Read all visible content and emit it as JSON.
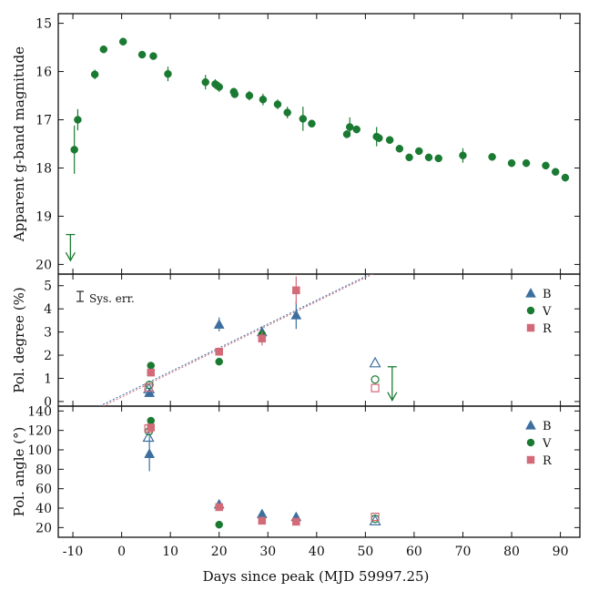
{
  "colors": {
    "g": "#1a7a32",
    "B": "#3d6f9e",
    "V": "#1a7a32",
    "R": "#d26a78",
    "frame": "#111111"
  },
  "x_axis": {
    "label": "Days since peak (MJD 59997.25)",
    "xlim": [
      -13,
      94
    ],
    "ticks": [
      -10,
      0,
      10,
      20,
      30,
      40,
      50,
      60,
      70,
      80,
      90
    ],
    "tick_labels": [
      "-10",
      "0",
      "10",
      "20",
      "30",
      "40",
      "50",
      "60",
      "70",
      "80",
      "90"
    ]
  },
  "chart_data": [
    {
      "type": "scatter",
      "ylabel": "Apparent g-band magnitude",
      "ylim": [
        20.2,
        14.8
      ],
      "inverted": true,
      "yticks": [
        15,
        16,
        17,
        18,
        19,
        20
      ],
      "ytick_labels": [
        "15",
        "16",
        "17",
        "18",
        "19",
        "20"
      ],
      "series": [
        {
          "key": "g",
          "marker": "circle",
          "points": [
            {
              "x": -9.7,
              "y": 17.62,
              "err": 0.5
            },
            {
              "x": -9.0,
              "y": 17.0,
              "err": 0.22
            },
            {
              "x": -5.5,
              "y": 16.06,
              "err": 0.1
            },
            {
              "x": -3.7,
              "y": 15.54,
              "err": 0.05
            },
            {
              "x": 0.3,
              "y": 15.38,
              "err": 0.04
            },
            {
              "x": 4.2,
              "y": 15.65,
              "err": 0.05
            },
            {
              "x": 6.5,
              "y": 15.68,
              "err": 0.05
            },
            {
              "x": 9.5,
              "y": 16.05,
              "err": 0.15
            },
            {
              "x": 17.2,
              "y": 16.22,
              "err": 0.15
            },
            {
              "x": 19.2,
              "y": 16.26,
              "err": 0.1
            },
            {
              "x": 20.0,
              "y": 16.32,
              "err": 0.1
            },
            {
              "x": 23.0,
              "y": 16.42,
              "err": 0.08
            },
            {
              "x": 23.2,
              "y": 16.47,
              "err": 0.06
            },
            {
              "x": 26.2,
              "y": 16.5,
              "err": 0.1
            },
            {
              "x": 29.0,
              "y": 16.58,
              "err": 0.12
            },
            {
              "x": 32.0,
              "y": 16.68,
              "err": 0.1
            },
            {
              "x": 34.0,
              "y": 16.85,
              "err": 0.12
            },
            {
              "x": 37.2,
              "y": 16.98,
              "err": 0.25
            },
            {
              "x": 39.0,
              "y": 17.08,
              "err": 0.08
            },
            {
              "x": 46.2,
              "y": 17.3,
              "err": 0.08
            },
            {
              "x": 46.8,
              "y": 17.15,
              "err": 0.2
            },
            {
              "x": 48.2,
              "y": 17.2,
              "err": 0.08
            },
            {
              "x": 52.3,
              "y": 17.35,
              "err": 0.2
            },
            {
              "x": 52.8,
              "y": 17.38,
              "err": 0.08
            },
            {
              "x": 55.0,
              "y": 17.42,
              "err": 0.05
            },
            {
              "x": 57.0,
              "y": 17.6,
              "err": 0.06
            },
            {
              "x": 59.0,
              "y": 17.78,
              "err": 0.06
            },
            {
              "x": 61.0,
              "y": 17.65,
              "err": 0.06
            },
            {
              "x": 63.0,
              "y": 17.78,
              "err": 0.05
            },
            {
              "x": 65.0,
              "y": 17.8,
              "err": 0.05
            },
            {
              "x": 70.0,
              "y": 17.74,
              "err": 0.15
            },
            {
              "x": 76.0,
              "y": 17.77,
              "err": 0.07
            },
            {
              "x": 80.0,
              "y": 17.9,
              "err": 0.07
            },
            {
              "x": 83.0,
              "y": 17.9,
              "err": 0.07
            },
            {
              "x": 87.0,
              "y": 17.95,
              "err": 0.05
            },
            {
              "x": 89.0,
              "y": 18.08,
              "err": 0.05
            },
            {
              "x": 91.0,
              "y": 18.2,
              "err": 0.08
            }
          ]
        }
      ],
      "upper_limits": [
        {
          "x": -10.5,
          "y_bar": 19.38,
          "y_arrow": 19.92
        }
      ]
    },
    {
      "type": "scatter",
      "ylabel": "Pol. degree (%)",
      "ylim": [
        -0.2,
        5.5
      ],
      "yticks": [
        0,
        1,
        2,
        3,
        4,
        5
      ],
      "ytick_labels": [
        "0",
        "1",
        "2",
        "3",
        "4",
        "5"
      ],
      "legend": {
        "placement": "top-right",
        "entries": [
          "B",
          "V",
          "R"
        ]
      },
      "sys_err_label": "Sys. err.",
      "series": [
        {
          "key": "B",
          "marker": "triangle",
          "points": [
            {
              "x": 5.7,
              "y": 0.38,
              "err": 0.15
            },
            {
              "x": 20.0,
              "y": 3.33,
              "err": 0.3
            },
            {
              "x": 28.8,
              "y": 3.0,
              "err": 0.25
            },
            {
              "x": 35.8,
              "y": 3.73,
              "err": 0.6
            }
          ],
          "open_points": [
            {
              "x": 52.0,
              "y": 1.67
            },
            {
              "x": 5.6,
              "y": 0.55
            }
          ]
        },
        {
          "key": "V",
          "marker": "circle",
          "points": [
            {
              "x": 6.0,
              "y": 1.55,
              "err": 0.1
            },
            {
              "x": 20.0,
              "y": 1.72,
              "err": 0.1
            },
            {
              "x": 28.8,
              "y": 2.9,
              "err": 0.12
            }
          ],
          "open_points": [
            {
              "x": 52.0,
              "y": 0.95
            },
            {
              "x": 5.7,
              "y": 0.72
            }
          ]
        },
        {
          "key": "R",
          "marker": "square",
          "points": [
            {
              "x": 6.0,
              "y": 1.25,
              "err": 0.1
            },
            {
              "x": 20.0,
              "y": 2.15,
              "err": 0.1
            },
            {
              "x": 28.8,
              "y": 2.72,
              "err": 0.3
            },
            {
              "x": 35.8,
              "y": 4.8,
              "err": 0.6
            }
          ],
          "open_points": [
            {
              "x": 52.0,
              "y": 0.58
            },
            {
              "x": 5.5,
              "y": 0.6
            }
          ]
        }
      ],
      "fit_lines": [
        {
          "key": "B",
          "from": {
            "x": -4.5,
            "y": -0.2
          },
          "to": {
            "x": 51.0,
            "y": 5.5
          }
        },
        {
          "key": "R",
          "from": {
            "x": -3.8,
            "y": -0.2
          },
          "to": {
            "x": 51.5,
            "y": 5.5
          }
        }
      ],
      "upper_limits": [
        {
          "x": 55.5,
          "y_bar": 1.5,
          "y_arrow": 0.05
        }
      ]
    },
    {
      "type": "scatter",
      "ylabel": "Pol. angle (°)",
      "ylim": [
        10,
        145
      ],
      "yticks": [
        20,
        40,
        60,
        80,
        100,
        120,
        140
      ],
      "ytick_labels": [
        "20",
        "40",
        "60",
        "80",
        "100",
        "120",
        "140"
      ],
      "legend": {
        "placement": "top-right",
        "entries": [
          "B",
          "V",
          "R"
        ]
      },
      "series": [
        {
          "key": "B",
          "marker": "triangle",
          "points": [
            {
              "x": 5.7,
              "y": 96,
              "err": 18
            },
            {
              "x": 20.0,
              "y": 44,
              "err": 2
            },
            {
              "x": 28.8,
              "y": 34,
              "err": 2
            },
            {
              "x": 35.8,
              "y": 31,
              "err": 2
            }
          ],
          "open_points": [
            {
              "x": 52.0,
              "y": 27
            },
            {
              "x": 5.5,
              "y": 113
            }
          ]
        },
        {
          "key": "V",
          "marker": "circle",
          "points": [
            {
              "x": 6.0,
              "y": 130,
              "err": 2
            },
            {
              "x": 20.0,
              "y": 23,
              "err": 2
            }
          ],
          "open_points": [
            {
              "x": 52.0,
              "y": 29
            },
            {
              "x": 5.6,
              "y": 119
            }
          ]
        },
        {
          "key": "R",
          "marker": "square",
          "points": [
            {
              "x": 6.0,
              "y": 123,
              "err": 4
            },
            {
              "x": 20.0,
              "y": 41,
              "err": 2
            },
            {
              "x": 28.8,
              "y": 27,
              "err": 2
            },
            {
              "x": 35.8,
              "y": 26,
              "err": 2
            }
          ],
          "open_points": [
            {
              "x": 52.0,
              "y": 31
            },
            {
              "x": 5.5,
              "y": 122
            }
          ]
        }
      ]
    }
  ]
}
